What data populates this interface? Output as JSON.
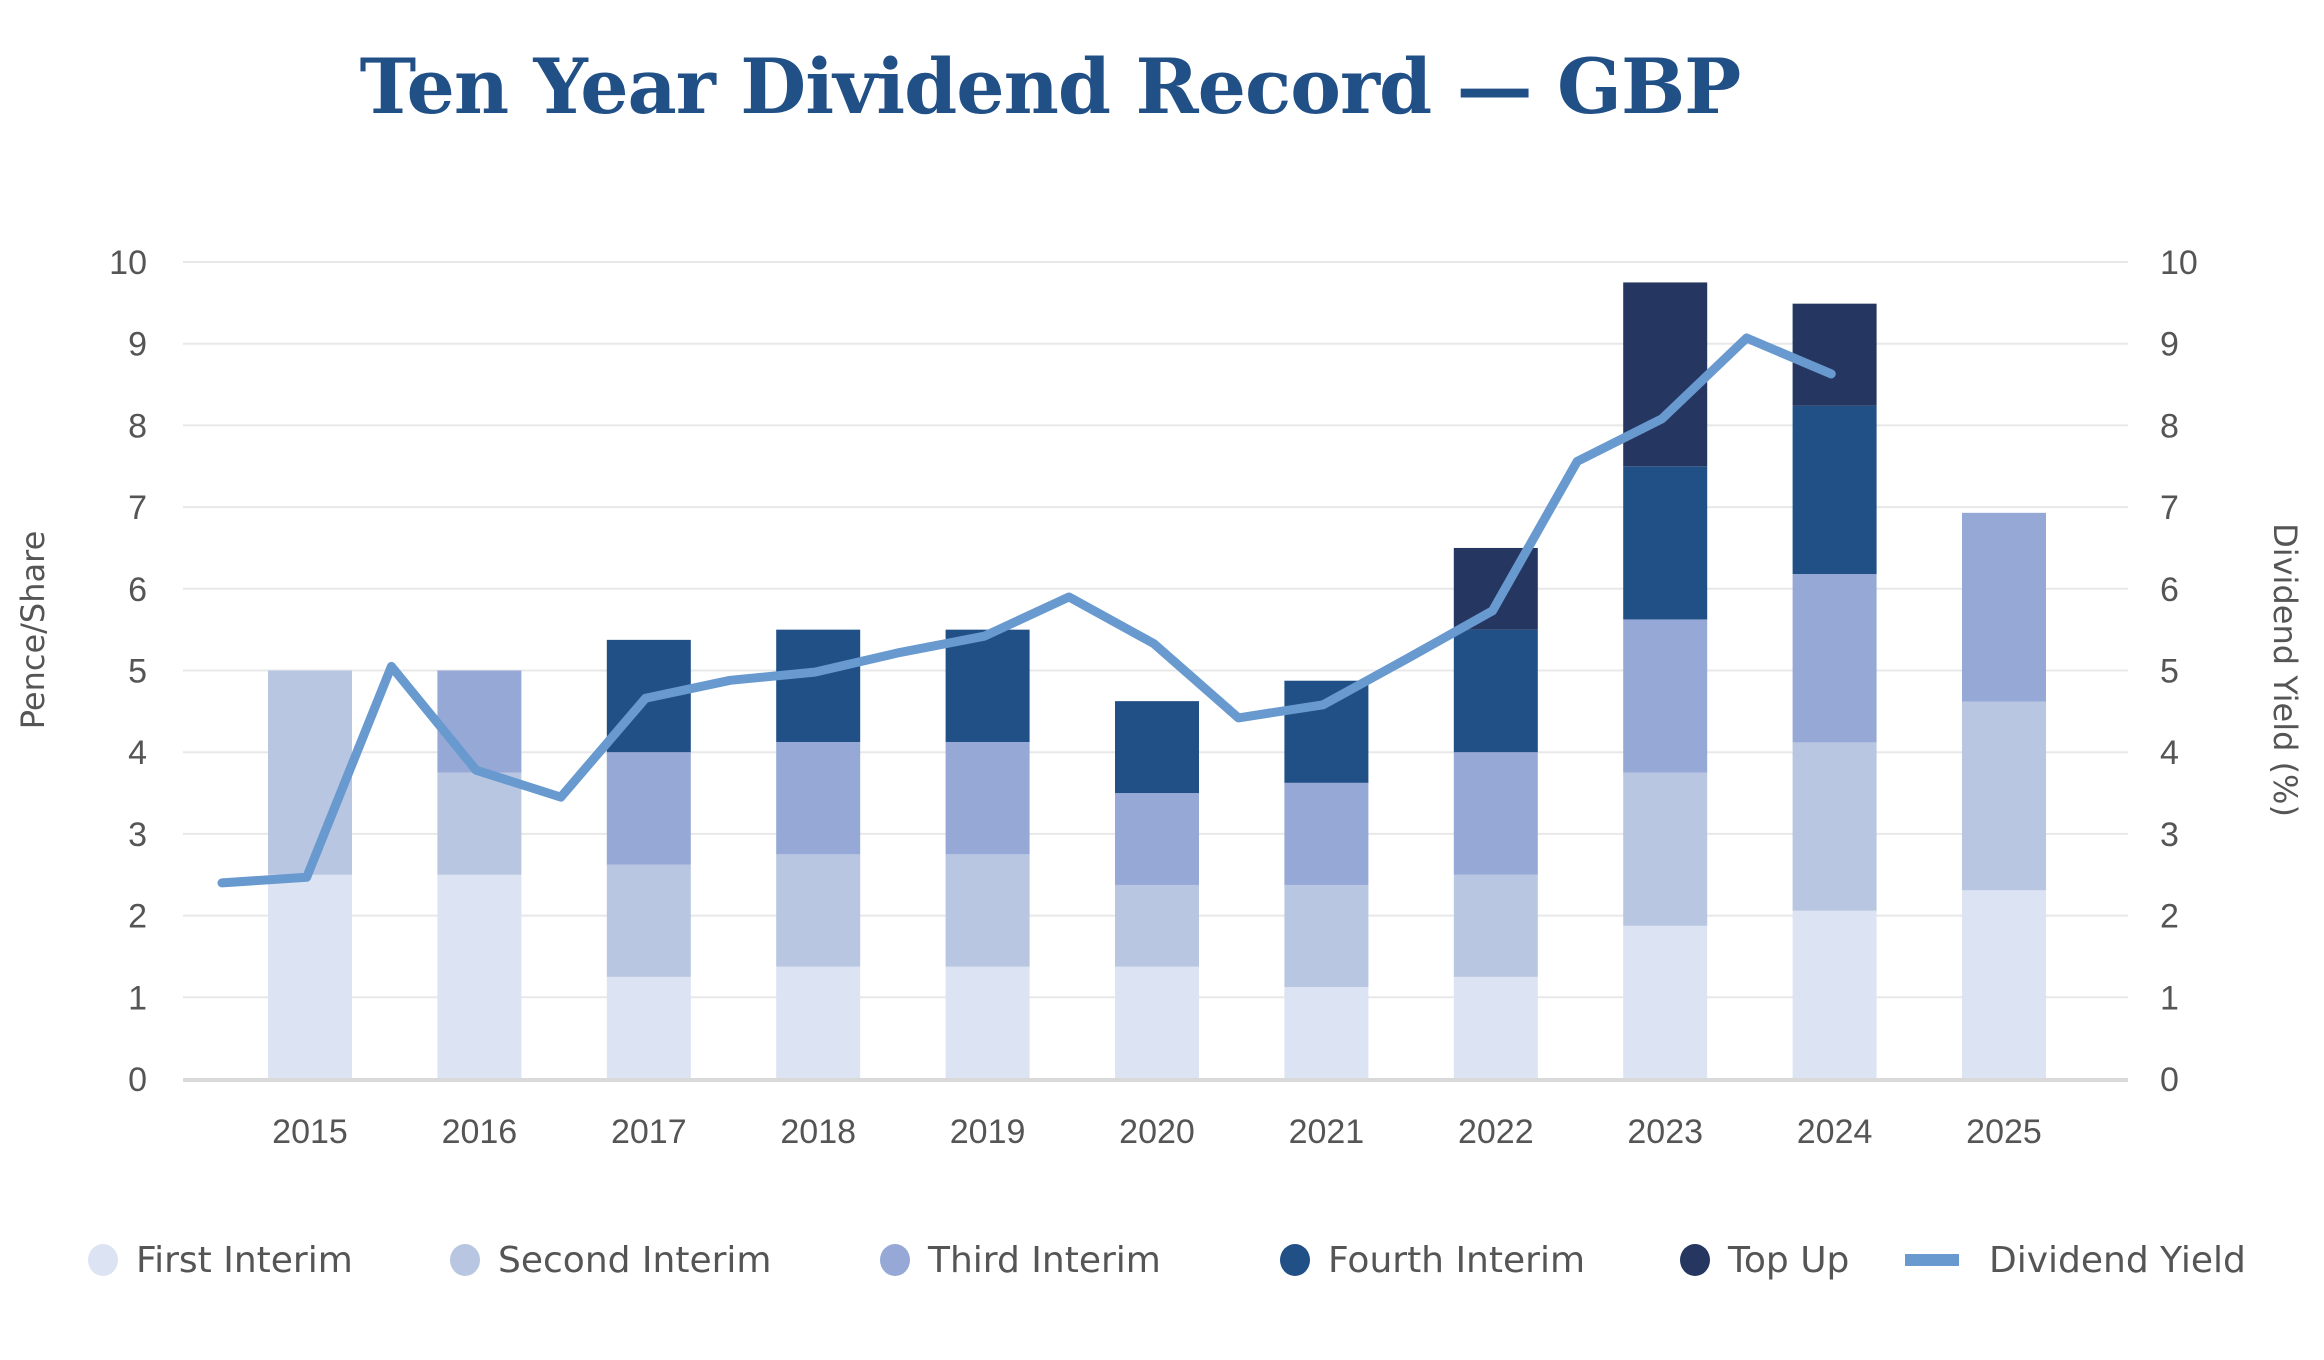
{
  "chart_data": {
    "type": "bar",
    "stacked": true,
    "title": "Ten Year Dividend Record — GBP",
    "xlabel": "",
    "ylabel": "Pence/Share",
    "y2label": "Dividend Yield (%)",
    "ylim": [
      0,
      10
    ],
    "y2lim": [
      0,
      10
    ],
    "yticks": [
      "0",
      "1",
      "2",
      "3",
      "4",
      "5",
      "6",
      "7",
      "8",
      "9",
      "10"
    ],
    "y2ticks": [
      "0",
      "1",
      "2",
      "3",
      "4",
      "5",
      "6",
      "7",
      "8",
      "9",
      "10"
    ],
    "grid": true,
    "legend_position": "bottom",
    "categories": [
      "2015",
      "2016",
      "2017",
      "2018",
      "2019",
      "2020",
      "2021",
      "2022",
      "2023",
      "2024",
      "2025"
    ],
    "series": [
      {
        "name": "First Interim",
        "color": "#dce3f2",
        "values": [
          2.5,
          2.5,
          1.25,
          1.375,
          1.375,
          1.375,
          1.125,
          1.25,
          1.875,
          2.06,
          2.31
        ]
      },
      {
        "name": "Second Interim",
        "color": "#b8c6e2",
        "values": [
          2.5,
          1.25,
          1.375,
          1.375,
          1.375,
          1.0,
          1.25,
          1.25,
          1.875,
          2.06,
          2.31
        ]
      },
      {
        "name": "Third Interim",
        "color": "#96a9d6",
        "values": [
          0,
          1.25,
          1.375,
          1.375,
          1.375,
          1.125,
          1.25,
          1.5,
          1.875,
          2.06,
          2.31
        ]
      },
      {
        "name": "Fourth Interim",
        "color": "#215087",
        "values": [
          0,
          0,
          1.375,
          1.375,
          1.375,
          1.125,
          1.25,
          1.5,
          1.875,
          2.06,
          0
        ]
      },
      {
        "name": "Top Up",
        "color": "#253660",
        "values": [
          0,
          0,
          0,
          0,
          0,
          0,
          0,
          1.0,
          2.25,
          1.25,
          0
        ]
      }
    ],
    "line_series": {
      "name": "Dividend Yield",
      "color": "#6899cf",
      "axis": "right",
      "note": "points sampled at half-year intervals starting just before 2015",
      "values": [
        2.4,
        2.47,
        5.05,
        3.78,
        3.45,
        4.66,
        4.88,
        4.98,
        5.22,
        5.42,
        5.9,
        5.33,
        4.42,
        4.58,
        5.15,
        5.73,
        7.56,
        8.08,
        9.07,
        8.63
      ]
    }
  },
  "legend": [
    {
      "label": "First Interim",
      "color": "#dce3f2",
      "kind": "dot"
    },
    {
      "label": "Second Interim",
      "color": "#b8c6e2",
      "kind": "dot"
    },
    {
      "label": "Third Interim",
      "color": "#96a9d6",
      "kind": "dot"
    },
    {
      "label": "Fourth Interim",
      "color": "#215087",
      "kind": "dot"
    },
    {
      "label": "Top Up",
      "color": "#253660",
      "kind": "dot"
    },
    {
      "label": "Dividend Yield",
      "color": "#6899cf",
      "kind": "line"
    }
  ]
}
